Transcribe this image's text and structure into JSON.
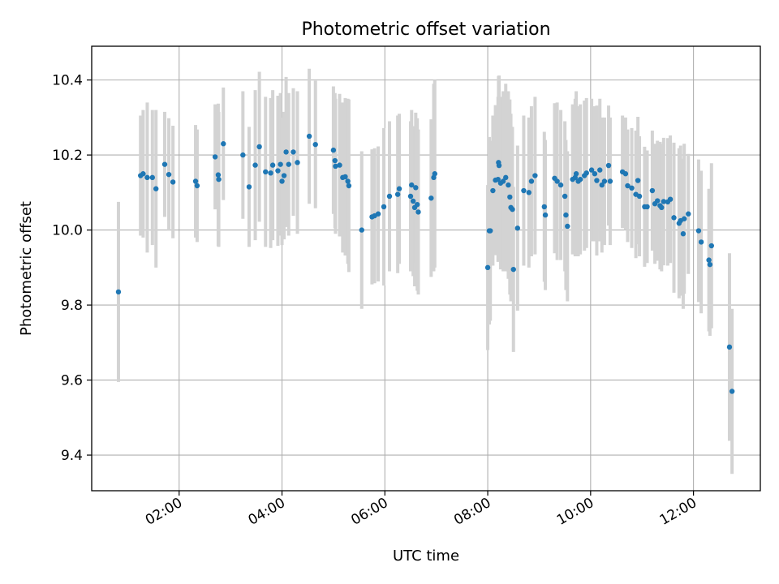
{
  "chart_data": {
    "type": "scatter",
    "title": "Photometric offset variation",
    "xlabel": "UTC time",
    "ylabel": "Photometric offset",
    "xlim": [
      0.3,
      13.3
    ],
    "ylim": [
      9.305,
      10.49
    ],
    "grid": true,
    "colors": {
      "point": "#1f77b4",
      "errorbar": "#d3d3d3"
    },
    "x_ticks": [
      {
        "value": 2,
        "label": "02:00"
      },
      {
        "value": 4,
        "label": "04:00"
      },
      {
        "value": 6,
        "label": "06:00"
      },
      {
        "value": 8,
        "label": "08:00"
      },
      {
        "value": 10,
        "label": "10:00"
      },
      {
        "value": 12,
        "label": "12:00"
      }
    ],
    "y_ticks": [
      {
        "value": 9.4,
        "label": "9.4"
      },
      {
        "value": 9.6,
        "label": "9.6"
      },
      {
        "value": 9.8,
        "label": "9.8"
      },
      {
        "value": 10.0,
        "label": "10.0"
      },
      {
        "value": 10.2,
        "label": "10.2"
      },
      {
        "value": 10.4,
        "label": "10.4"
      }
    ],
    "series": [
      {
        "name": "Photometric offset",
        "points": [
          [
            0.82,
            9.835,
            0.24
          ],
          [
            1.25,
            10.145,
            0.16
          ],
          [
            1.3,
            10.15,
            0.17
          ],
          [
            1.38,
            10.14,
            0.2
          ],
          [
            1.48,
            10.14,
            0.18
          ],
          [
            1.55,
            10.11,
            0.21
          ],
          [
            1.72,
            10.175,
            0.14
          ],
          [
            1.8,
            10.148,
            0.15
          ],
          [
            1.88,
            10.128,
            0.15
          ],
          [
            2.32,
            10.13,
            0.15
          ],
          [
            2.35,
            10.118,
            0.15
          ],
          [
            2.7,
            10.195,
            0.14
          ],
          [
            2.76,
            10.147,
            0.19
          ],
          [
            2.77,
            10.135,
            0.18
          ],
          [
            2.86,
            10.23,
            0.15
          ],
          [
            3.24,
            10.2,
            0.17
          ],
          [
            3.36,
            10.115,
            0.16
          ],
          [
            3.48,
            10.173,
            0.2
          ],
          [
            3.56,
            10.222,
            0.2
          ],
          [
            3.68,
            10.155,
            0.2
          ],
          [
            3.78,
            10.152,
            0.2
          ],
          [
            3.82,
            10.173,
            0.2
          ],
          [
            3.92,
            10.158,
            0.2
          ],
          [
            3.97,
            10.175,
            0.19
          ],
          [
            4.0,
            10.13,
            0.17
          ],
          [
            4.04,
            10.145,
            0.17
          ],
          [
            4.08,
            10.208,
            0.2
          ],
          [
            4.13,
            10.175,
            0.19
          ],
          [
            4.22,
            10.208,
            0.17
          ],
          [
            4.3,
            10.18,
            0.19
          ],
          [
            4.53,
            10.25,
            0.18
          ],
          [
            4.65,
            10.228,
            0.17
          ],
          [
            5.0,
            10.213,
            0.17
          ],
          [
            5.03,
            10.185,
            0.18
          ],
          [
            5.04,
            10.17,
            0.18
          ],
          [
            5.12,
            10.173,
            0.19
          ],
          [
            5.18,
            10.14,
            0.2
          ],
          [
            5.23,
            10.142,
            0.21
          ],
          [
            5.28,
            10.13,
            0.22
          ],
          [
            5.3,
            10.118,
            0.23
          ],
          [
            5.55,
            10.0,
            0.21
          ],
          [
            5.75,
            10.035,
            0.18
          ],
          [
            5.8,
            10.038,
            0.18
          ],
          [
            5.87,
            10.043,
            0.18
          ],
          [
            5.98,
            10.062,
            0.21
          ],
          [
            6.09,
            10.09,
            0.2
          ],
          [
            6.25,
            10.095,
            0.21
          ],
          [
            6.28,
            10.11,
            0.2
          ],
          [
            6.5,
            10.09,
            0.2
          ],
          [
            6.52,
            10.12,
            0.2
          ],
          [
            6.55,
            10.077,
            0.2
          ],
          [
            6.58,
            10.06,
            0.21
          ],
          [
            6.6,
            10.113,
            0.2
          ],
          [
            6.63,
            10.068,
            0.23
          ],
          [
            6.65,
            10.048,
            0.22
          ],
          [
            6.9,
            10.085,
            0.21
          ],
          [
            6.95,
            10.14,
            0.25
          ],
          [
            6.97,
            10.15,
            0.25
          ],
          [
            8.0,
            9.9,
            0.22
          ],
          [
            8.03,
            9.998,
            0.25
          ],
          [
            8.05,
            9.998,
            0.24
          ],
          [
            8.1,
            10.105,
            0.2
          ],
          [
            8.15,
            10.133,
            0.2
          ],
          [
            8.2,
            10.135,
            0.22
          ],
          [
            8.21,
            10.18,
            0.23
          ],
          [
            8.22,
            10.172,
            0.24
          ],
          [
            8.25,
            10.125,
            0.23
          ],
          [
            8.3,
            10.13,
            0.24
          ],
          [
            8.35,
            10.14,
            0.25
          ],
          [
            8.4,
            10.12,
            0.25
          ],
          [
            8.43,
            10.088,
            0.26
          ],
          [
            8.45,
            10.06,
            0.25
          ],
          [
            8.48,
            10.055,
            0.22
          ],
          [
            8.5,
            9.895,
            0.22
          ],
          [
            8.58,
            10.005,
            0.22
          ],
          [
            8.7,
            10.105,
            0.2
          ],
          [
            8.8,
            10.1,
            0.2
          ],
          [
            8.85,
            10.13,
            0.2
          ],
          [
            8.92,
            10.145,
            0.21
          ],
          [
            9.1,
            10.062,
            0.2
          ],
          [
            9.12,
            10.04,
            0.2
          ],
          [
            9.3,
            10.138,
            0.2
          ],
          [
            9.35,
            10.13,
            0.21
          ],
          [
            9.42,
            10.12,
            0.2
          ],
          [
            9.5,
            10.09,
            0.2
          ],
          [
            9.52,
            10.04,
            0.2
          ],
          [
            9.55,
            10.01,
            0.2
          ],
          [
            9.65,
            10.135,
            0.2
          ],
          [
            9.7,
            10.14,
            0.21
          ],
          [
            9.72,
            10.15,
            0.22
          ],
          [
            9.76,
            10.13,
            0.2
          ],
          [
            9.8,
            10.135,
            0.2
          ],
          [
            9.88,
            10.145,
            0.2
          ],
          [
            9.92,
            10.152,
            0.2
          ],
          [
            10.02,
            10.16,
            0.19
          ],
          [
            10.08,
            10.15,
            0.18
          ],
          [
            10.12,
            10.132,
            0.2
          ],
          [
            10.18,
            10.16,
            0.19
          ],
          [
            10.22,
            10.12,
            0.18
          ],
          [
            10.27,
            10.13,
            0.17
          ],
          [
            10.35,
            10.172,
            0.16
          ],
          [
            10.38,
            10.13,
            0.17
          ],
          [
            10.62,
            10.155,
            0.15
          ],
          [
            10.68,
            10.15,
            0.15
          ],
          [
            10.72,
            10.118,
            0.15
          ],
          [
            10.8,
            10.112,
            0.16
          ],
          [
            10.88,
            10.095,
            0.17
          ],
          [
            10.92,
            10.132,
            0.17
          ],
          [
            10.95,
            10.09,
            0.16
          ],
          [
            11.05,
            10.062,
            0.16
          ],
          [
            11.1,
            10.062,
            0.15
          ],
          [
            11.2,
            10.105,
            0.16
          ],
          [
            11.25,
            10.07,
            0.16
          ],
          [
            11.3,
            10.078,
            0.16
          ],
          [
            11.35,
            10.065,
            0.17
          ],
          [
            11.38,
            10.06,
            0.17
          ],
          [
            11.42,
            10.076,
            0.17
          ],
          [
            11.5,
            10.075,
            0.17
          ],
          [
            11.55,
            10.082,
            0.17
          ],
          [
            11.62,
            10.033,
            0.2
          ],
          [
            11.72,
            10.018,
            0.2
          ],
          [
            11.75,
            10.025,
            0.2
          ],
          [
            11.8,
            9.99,
            0.2
          ],
          [
            11.82,
            10.03,
            0.2
          ],
          [
            11.9,
            10.043,
            0.16
          ],
          [
            12.1,
            9.998,
            0.19
          ],
          [
            12.15,
            9.968,
            0.19
          ],
          [
            12.3,
            9.92,
            0.19
          ],
          [
            12.32,
            9.908,
            0.19
          ],
          [
            12.35,
            9.958,
            0.22
          ],
          [
            12.7,
            9.688,
            0.25
          ],
          [
            12.75,
            9.57,
            0.22
          ]
        ]
      }
    ]
  }
}
